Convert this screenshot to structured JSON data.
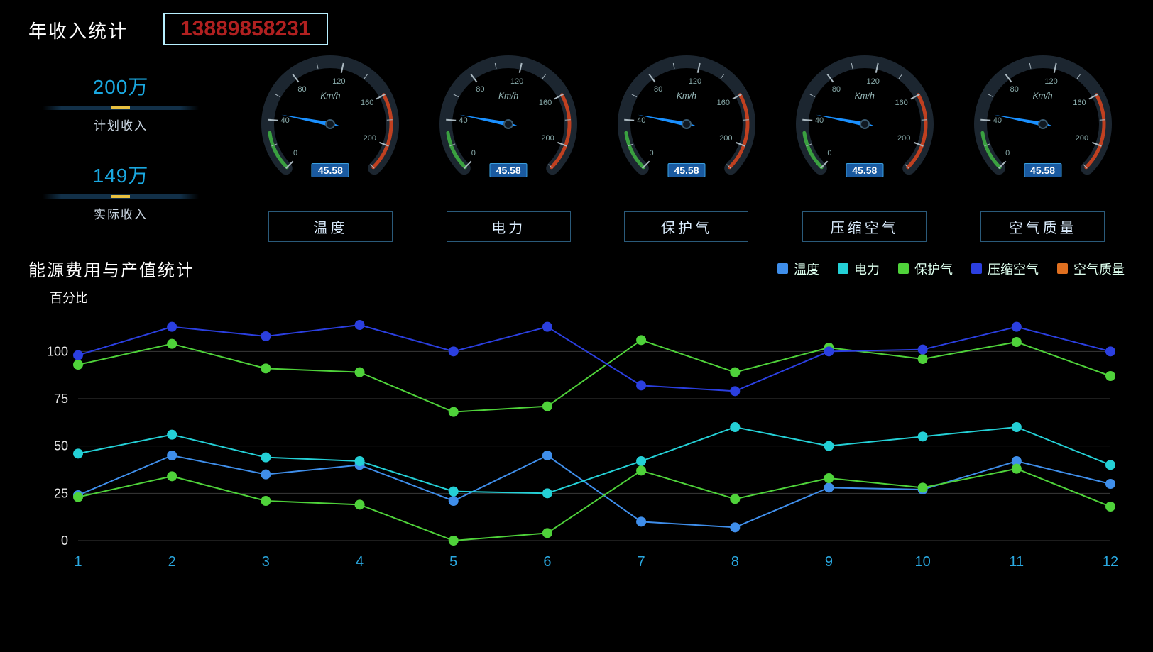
{
  "header": {
    "title": "年收入统计",
    "phone": "13889858231"
  },
  "income": {
    "planned": {
      "value": "200万",
      "label": "计划收入"
    },
    "actual": {
      "value": "149万",
      "label": "实际收入"
    }
  },
  "gauges": {
    "unit": "Km/h",
    "min": 0,
    "max": 220,
    "ticks": [
      0,
      20,
      40,
      60,
      80,
      100,
      120,
      140,
      160,
      180,
      200,
      220
    ],
    "value_display": "45.58",
    "needle_value": 45.58,
    "items": [
      {
        "label": "温度"
      },
      {
        "label": "电力"
      },
      {
        "label": "保护气"
      },
      {
        "label": "压缩空气"
      },
      {
        "label": "空气质量"
      }
    ],
    "colors": {
      "arc": "#1c2630",
      "tick": "#aab8c0",
      "needle": "#1a90ff",
      "low_band": "#3aa040",
      "high_band": "#c04020"
    }
  },
  "chart": {
    "title": "能源费用与产值统计",
    "y_axis_label": "百分比",
    "x_categories": [
      "1",
      "2",
      "3",
      "4",
      "5",
      "6",
      "7",
      "8",
      "9",
      "10",
      "11",
      "12"
    ],
    "y_ticks": [
      0,
      25,
      50,
      75,
      100
    ],
    "ylim": [
      0,
      120
    ],
    "grid_color": "#3a3a3a",
    "axis_label_color": "#2aa8e0",
    "background": "#000000",
    "point_radius": 7,
    "line_width": 2,
    "legend": [
      {
        "name": "温度",
        "color": "#3f8eea"
      },
      {
        "name": "电力",
        "color": "#24d0d6"
      },
      {
        "name": "保护气",
        "color": "#4fd23a"
      },
      {
        "name": "压缩空气",
        "color": "#2b3fe0"
      },
      {
        "name": "空气质量",
        "color": "#e07020"
      }
    ],
    "series": [
      {
        "name": "温度",
        "color": "#3f8eea",
        "values": [
          24,
          45,
          35,
          40,
          21,
          45,
          10,
          7,
          28,
          27,
          42,
          30
        ]
      },
      {
        "name": "电力",
        "color": "#24d0d6",
        "values": [
          46,
          56,
          44,
          42,
          26,
          25,
          42,
          60,
          50,
          55,
          60,
          40
        ]
      },
      {
        "name": "保护气_low",
        "color": "#4fd23a",
        "values": [
          23,
          34,
          21,
          19,
          0,
          4,
          37,
          22,
          33,
          28,
          38,
          18
        ]
      },
      {
        "name": "保护气_hi",
        "color": "#4fd23a",
        "values": [
          93,
          104,
          91,
          89,
          68,
          71,
          106,
          89,
          102,
          96,
          105,
          87
        ]
      },
      {
        "name": "压缩空气",
        "color": "#2b3fe0",
        "values": [
          98,
          113,
          108,
          114,
          100,
          113,
          82,
          79,
          100,
          101,
          113,
          100
        ]
      }
    ]
  }
}
